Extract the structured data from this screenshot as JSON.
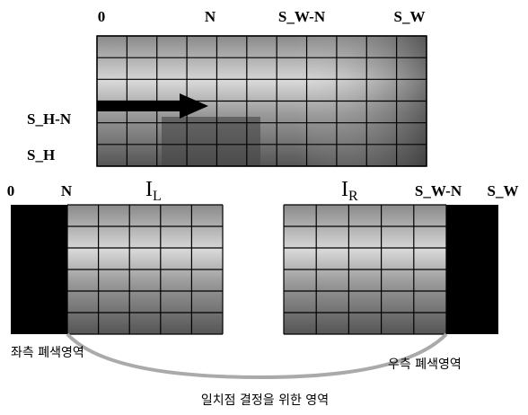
{
  "top_image": {
    "x_labels": [
      "0",
      "N",
      "S_W-N",
      "S_W"
    ],
    "y_labels": [
      "S_H-N",
      "S_H"
    ]
  },
  "left_image": {
    "labels": [
      "0",
      "N"
    ],
    "name": {
      "main": "I",
      "sub": "L"
    },
    "caption": "좌측 폐색영역"
  },
  "right_image": {
    "labels": [
      "S_W-N",
      "S_W"
    ],
    "name": {
      "main": "I",
      "sub": "R"
    },
    "caption": "우측 폐색영역"
  },
  "bottom_caption": "일치점 결정을 위한 영역"
}
